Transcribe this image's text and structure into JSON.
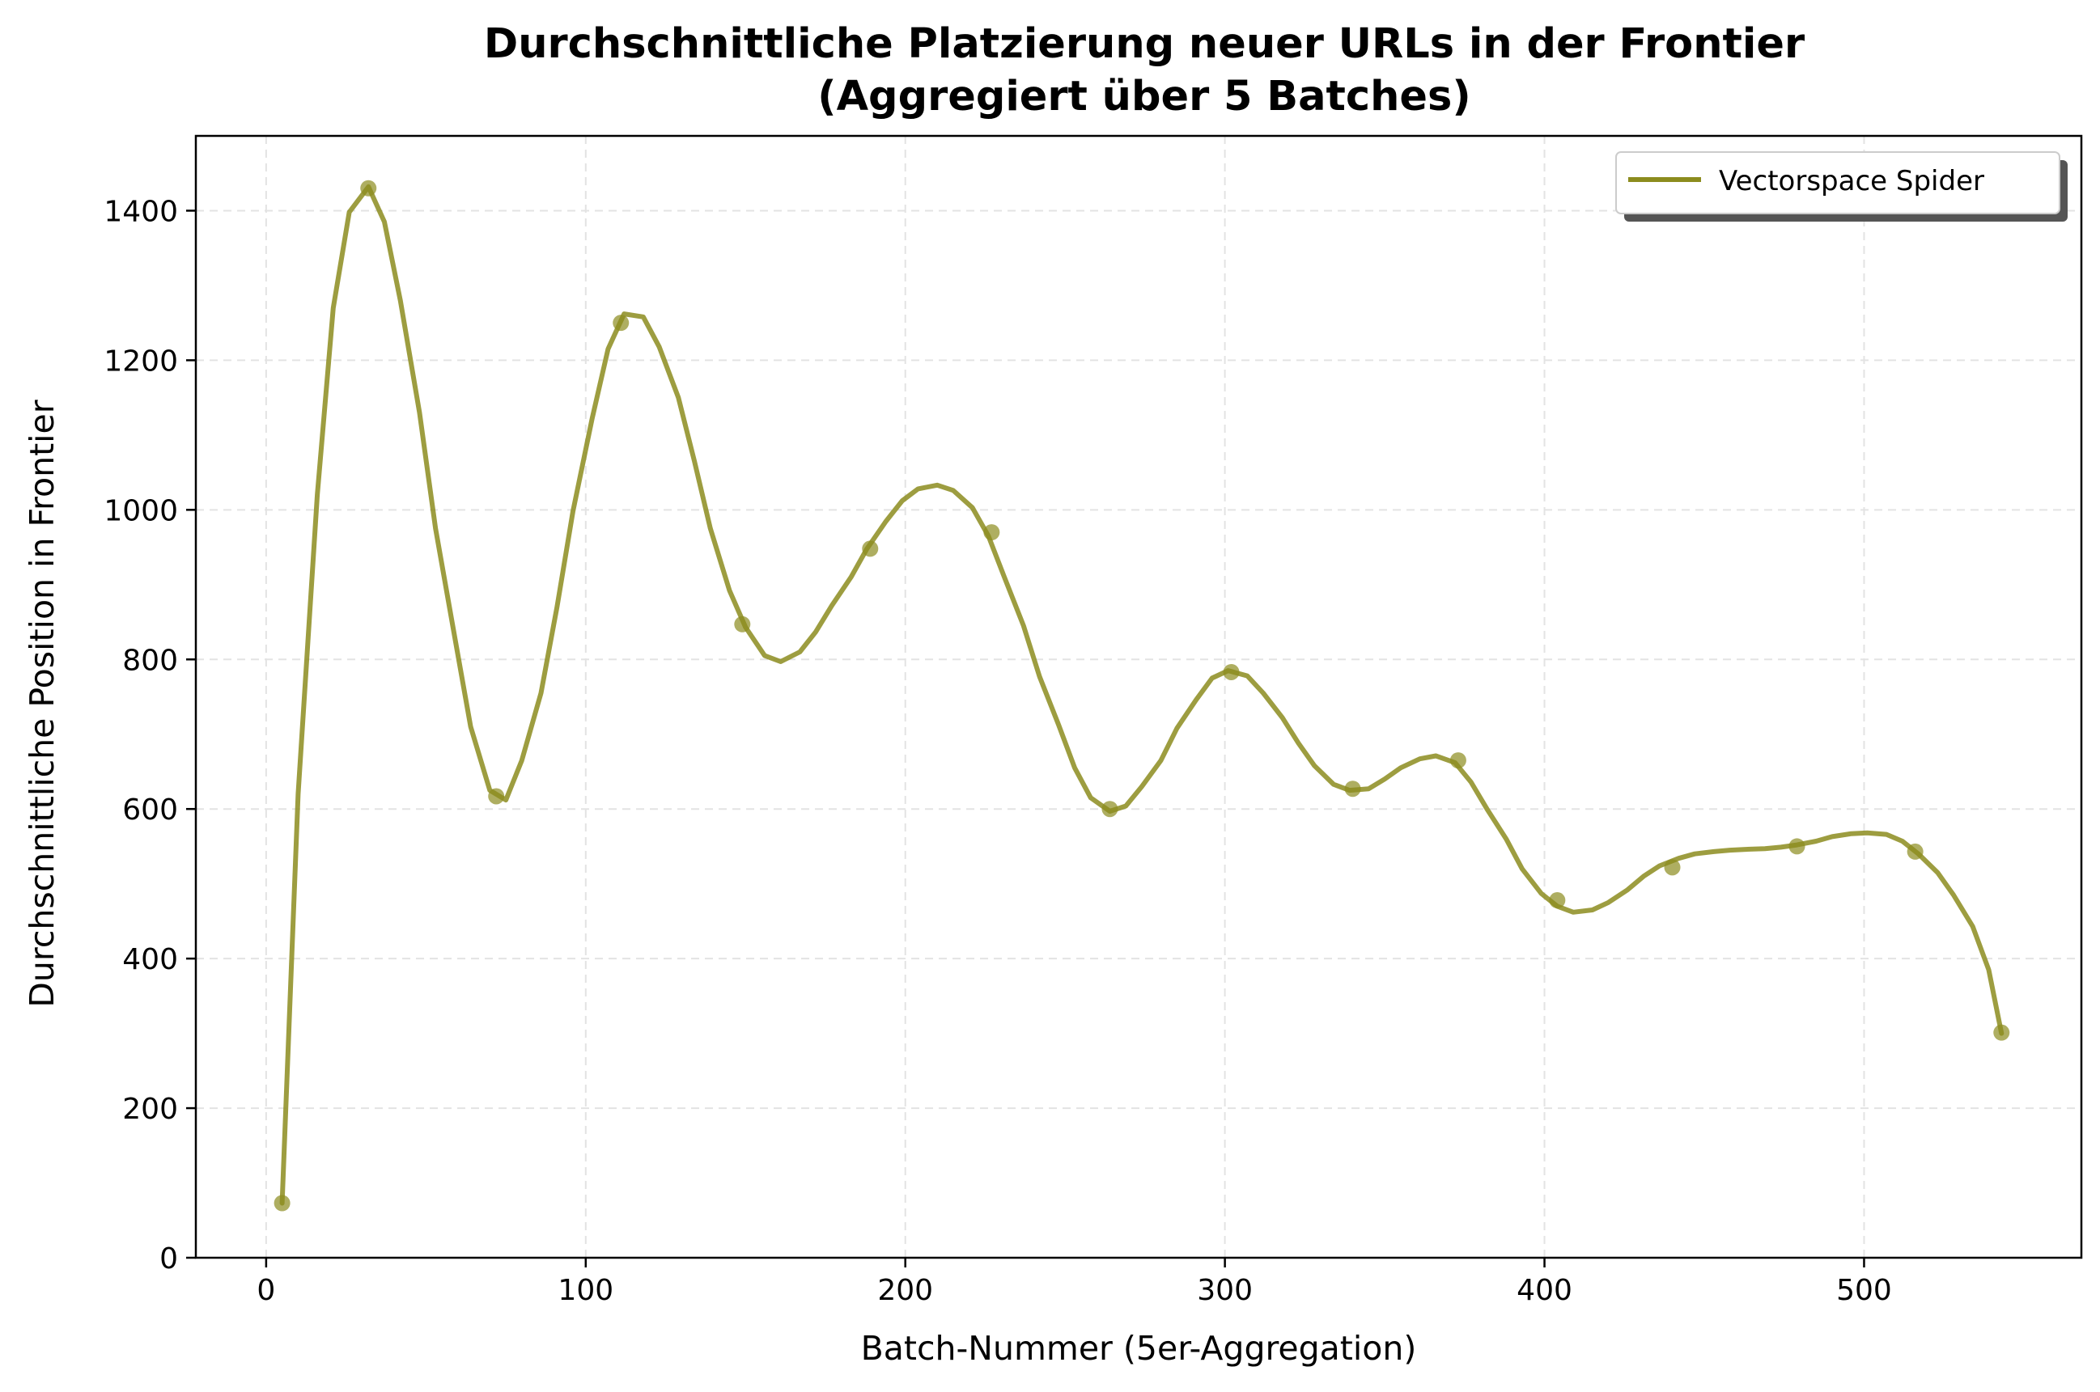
{
  "chart_data": {
    "type": "line",
    "title_line1": "Durchschnittliche Platzierung neuer URLs in der Frontier",
    "title_line2": "(Aggregiert über 5 Batches)",
    "xlabel": "Batch-Nummer (5er-Aggregation)",
    "ylabel": "Durchschnittliche Position in Frontier",
    "xlim": [
      -22,
      568
    ],
    "ylim": [
      0,
      1500
    ],
    "x_ticks": [
      0,
      100,
      200,
      300,
      400,
      500
    ],
    "y_ticks": [
      0,
      200,
      400,
      600,
      800,
      1000,
      1200,
      1400
    ],
    "grid": true,
    "legend_position": "top-right",
    "series": [
      {
        "name": "Vectorspace Spider",
        "color": "#8c8c1e",
        "points_x": [
          5,
          32,
          72,
          111,
          149,
          189,
          227,
          264,
          302,
          340,
          373,
          404,
          440,
          479,
          516,
          543
        ],
        "points_y": [
          73,
          1430,
          617,
          1250,
          847,
          948,
          970,
          600,
          783,
          627,
          665,
          478,
          522,
          550,
          543,
          301
        ],
        "line_x": [
          5,
          10,
          16,
          21,
          26,
          32,
          37,
          42,
          48,
          53,
          59,
          64,
          70,
          75,
          80,
          86,
          91,
          96,
          102,
          107,
          112,
          118,
          123,
          129,
          134,
          139,
          145,
          150,
          156,
          161,
          167,
          172,
          177,
          183,
          188,
          194,
          199,
          204,
          210,
          215,
          221,
          226,
          231,
          237,
          242,
          248,
          253,
          258,
          264,
          269,
          274,
          280,
          285,
          291,
          296,
          301,
          307,
          312,
          318,
          323,
          328,
          334,
          339,
          345,
          350,
          355,
          361,
          366,
          372,
          377,
          382,
          388,
          393,
          399,
          404,
          409,
          415,
          420,
          426,
          431,
          436,
          442,
          447,
          453,
          458,
          463,
          469,
          474,
          479,
          485,
          490,
          496,
          501,
          507,
          512,
          517,
          523,
          528,
          534,
          539,
          543
        ],
        "line_y": [
          73,
          620,
          1020,
          1270,
          1398,
          1432,
          1385,
          1280,
          1130,
          975,
          830,
          710,
          625,
          612,
          665,
          755,
          870,
          998,
          1122,
          1215,
          1262,
          1258,
          1218,
          1150,
          1065,
          975,
          892,
          843,
          805,
          797,
          810,
          837,
          872,
          910,
          948,
          985,
          1012,
          1028,
          1033,
          1026,
          1003,
          965,
          910,
          845,
          777,
          712,
          655,
          615,
          597,
          604,
          630,
          665,
          708,
          746,
          775,
          785,
          778,
          755,
          722,
          688,
          658,
          633,
          625,
          627,
          640,
          655,
          667,
          671,
          662,
          636,
          600,
          560,
          520,
          487,
          470,
          462,
          465,
          475,
          492,
          510,
          524,
          534,
          540,
          543,
          545,
          546,
          547,
          549,
          552,
          557,
          563,
          567,
          568,
          566,
          557,
          540,
          515,
          485,
          443,
          385,
          300
        ]
      }
    ]
  }
}
